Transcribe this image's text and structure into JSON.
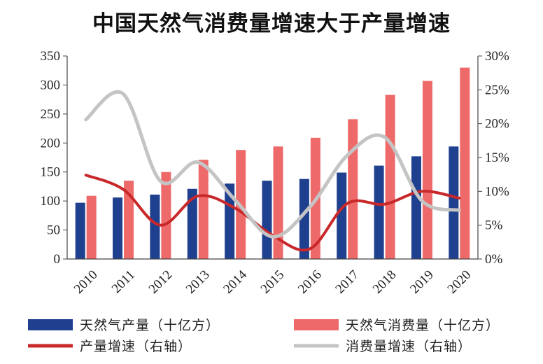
{
  "chart_data": {
    "type": "bar",
    "title": "中国天然气消费量增速大于产量增速",
    "categories": [
      "2010",
      "2011",
      "2012",
      "2013",
      "2014",
      "2015",
      "2016",
      "2017",
      "2018",
      "2019",
      "2020"
    ],
    "y_left": {
      "ylim": [
        0,
        350
      ],
      "ticks": [
        "0",
        "50",
        "100",
        "150",
        "200",
        "250",
        "300",
        "350"
      ]
    },
    "y_right": {
      "ylim": [
        0,
        30
      ],
      "ticks": [
        "0%",
        "5%",
        "10%",
        "15%",
        "20%",
        "25%",
        "30%"
      ]
    },
    "series": [
      {
        "name": "天然气产量（十亿方）",
        "kind": "bar",
        "axis": "left",
        "color": "#1f3f8f",
        "values": [
          97,
          106,
          111,
          121,
          130,
          135,
          138,
          149,
          161,
          177,
          194
        ]
      },
      {
        "name": "天然气消费量（十亿方）",
        "kind": "bar",
        "axis": "left",
        "color": "#ee6a6a",
        "values": [
          109,
          135,
          150,
          171,
          188,
          194,
          209,
          241,
          283,
          307,
          330
        ]
      },
      {
        "name": "产量增速（右轴）",
        "kind": "line",
        "axis": "right",
        "color": "#c8282a",
        "values": [
          12.4,
          10.3,
          5.0,
          9.3,
          7.5,
          3.5,
          1.5,
          8.2,
          8.1,
          10.0,
          9.0
        ]
      },
      {
        "name": "消费量增速（右轴）",
        "kind": "line",
        "axis": "right",
        "color": "#c4c4c4",
        "values": [
          20.6,
          24.4,
          11.5,
          14.3,
          8.7,
          3.3,
          7.7,
          15.3,
          18.0,
          8.6,
          7.2
        ]
      }
    ],
    "legend_position": "bottom",
    "grid": false
  }
}
